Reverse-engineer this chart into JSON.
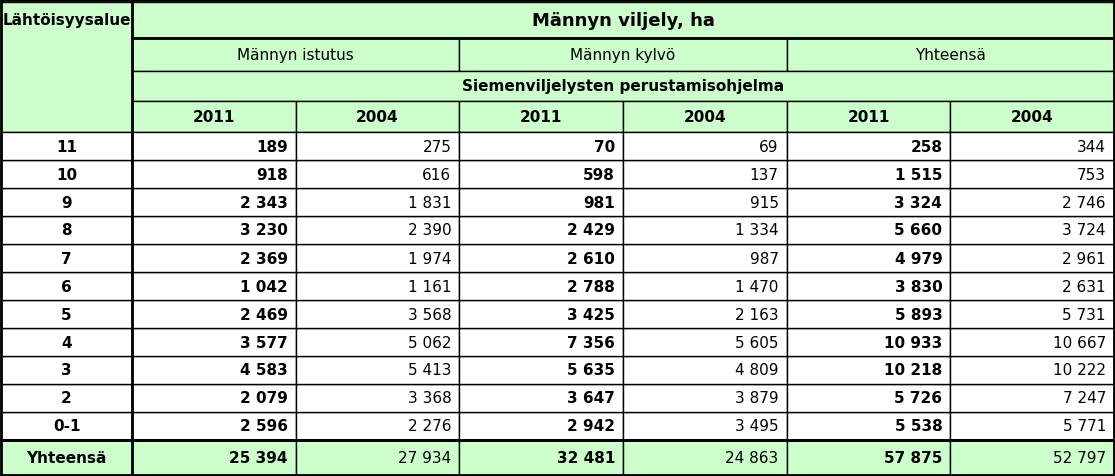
{
  "title_main": "Männyn viljely, ha",
  "col_header1": [
    "Männyn istutus",
    "Männyn kylvö",
    "Yhteensä"
  ],
  "col_header2": "Siemenviljelysten perustamisohjelma",
  "col_years": [
    "2011",
    "2004",
    "2011",
    "2004",
    "2011",
    "2004"
  ],
  "row_header": "Lähtöisyysalue",
  "rows": [
    [
      "0-1",
      "2 596",
      "2 276",
      "2 942",
      "3 495",
      "5 538",
      "5 771"
    ],
    [
      "2",
      "2 079",
      "3 368",
      "3 647",
      "3 879",
      "5 726",
      "7 247"
    ],
    [
      "3",
      "4 583",
      "5 413",
      "5 635",
      "4 809",
      "10 218",
      "10 222"
    ],
    [
      "4",
      "3 577",
      "5 062",
      "7 356",
      "5 605",
      "10 933",
      "10 667"
    ],
    [
      "5",
      "2 469",
      "3 568",
      "3 425",
      "2 163",
      "5 893",
      "5 731"
    ],
    [
      "6",
      "1 042",
      "1 161",
      "2 788",
      "1 470",
      "3 830",
      "2 631"
    ],
    [
      "7",
      "2 369",
      "1 974",
      "2 610",
      "987",
      "4 979",
      "2 961"
    ],
    [
      "8",
      "3 230",
      "2 390",
      "2 429",
      "1 334",
      "5 660",
      "3 724"
    ],
    [
      "9",
      "2 343",
      "1 831",
      "981",
      "915",
      "3 324",
      "2 746"
    ],
    [
      "10",
      "918",
      "616",
      "598",
      "137",
      "1 515",
      "753"
    ],
    [
      "11",
      "189",
      "275",
      "70",
      "69",
      "258",
      "344"
    ]
  ],
  "total_row": [
    "Yhteensä",
    "25 394",
    "27 934",
    "32 481",
    "24 863",
    "57 875",
    "52 797"
  ],
  "bg_green": "#ccffcc",
  "bg_white": "#ffffff",
  "border_color": "#000000",
  "text_color": "#000000",
  "fig_w": 11.15,
  "fig_h": 4.77,
  "dpi": 100
}
